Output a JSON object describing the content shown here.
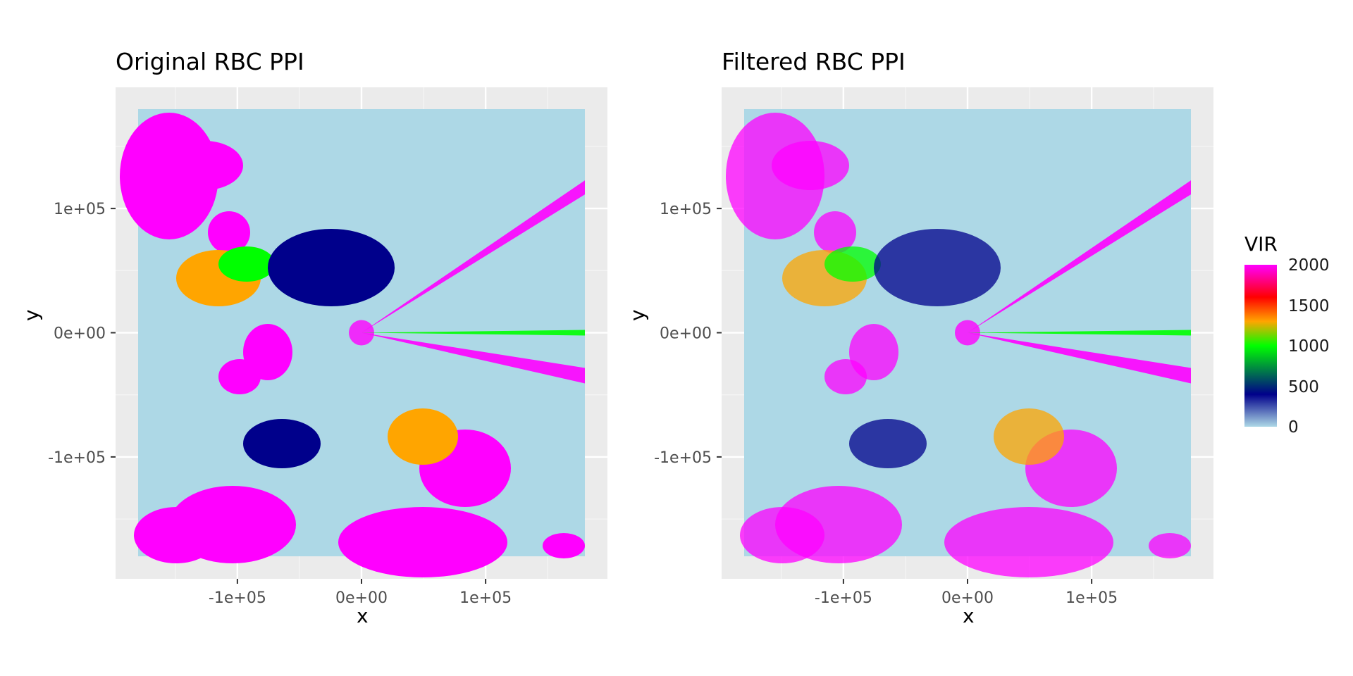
{
  "chart_data": [
    {
      "type": "heatmap",
      "title": "Original RBC PPI",
      "xlabel": "x",
      "ylabel": "y",
      "x_ticks": [
        "-1e+05",
        "0e+00",
        "1e+05"
      ],
      "y_ticks": [
        "1e+05",
        "0e+00",
        "-1e+05"
      ],
      "x_tick_values": [
        -100000,
        0,
        100000
      ],
      "y_tick_values": [
        100000,
        0,
        -100000
      ],
      "xlim": [
        -180000,
        180000
      ],
      "ylim": [
        -180000,
        180000
      ],
      "grid": true,
      "background": "#ebebeb",
      "fill_base": "#add8e6"
    },
    {
      "type": "heatmap",
      "title": "Filtered RBC PPI",
      "xlabel": "x",
      "ylabel": "y",
      "x_ticks": [
        "-1e+05",
        "0e+00",
        "1e+05"
      ],
      "y_ticks": [
        "1e+05",
        "0e+00",
        "-1e+05"
      ],
      "x_tick_values": [
        -100000,
        0,
        100000
      ],
      "y_tick_values": [
        100000,
        0,
        -100000
      ],
      "xlim": [
        -180000,
        180000
      ],
      "ylim": [
        -180000,
        180000
      ],
      "grid": true,
      "background": "#ebebeb",
      "fill_base": "#add8e6"
    }
  ],
  "legend": {
    "title": "VIR",
    "labels": [
      "2000",
      "1500",
      "1000",
      "500",
      "0"
    ],
    "values": [
      2000,
      1500,
      1000,
      500,
      0
    ],
    "colors": [
      "#add8e6",
      "#00008b",
      "#00ff00",
      "#ffa500",
      "#ff0000",
      "#ff00ff"
    ]
  }
}
